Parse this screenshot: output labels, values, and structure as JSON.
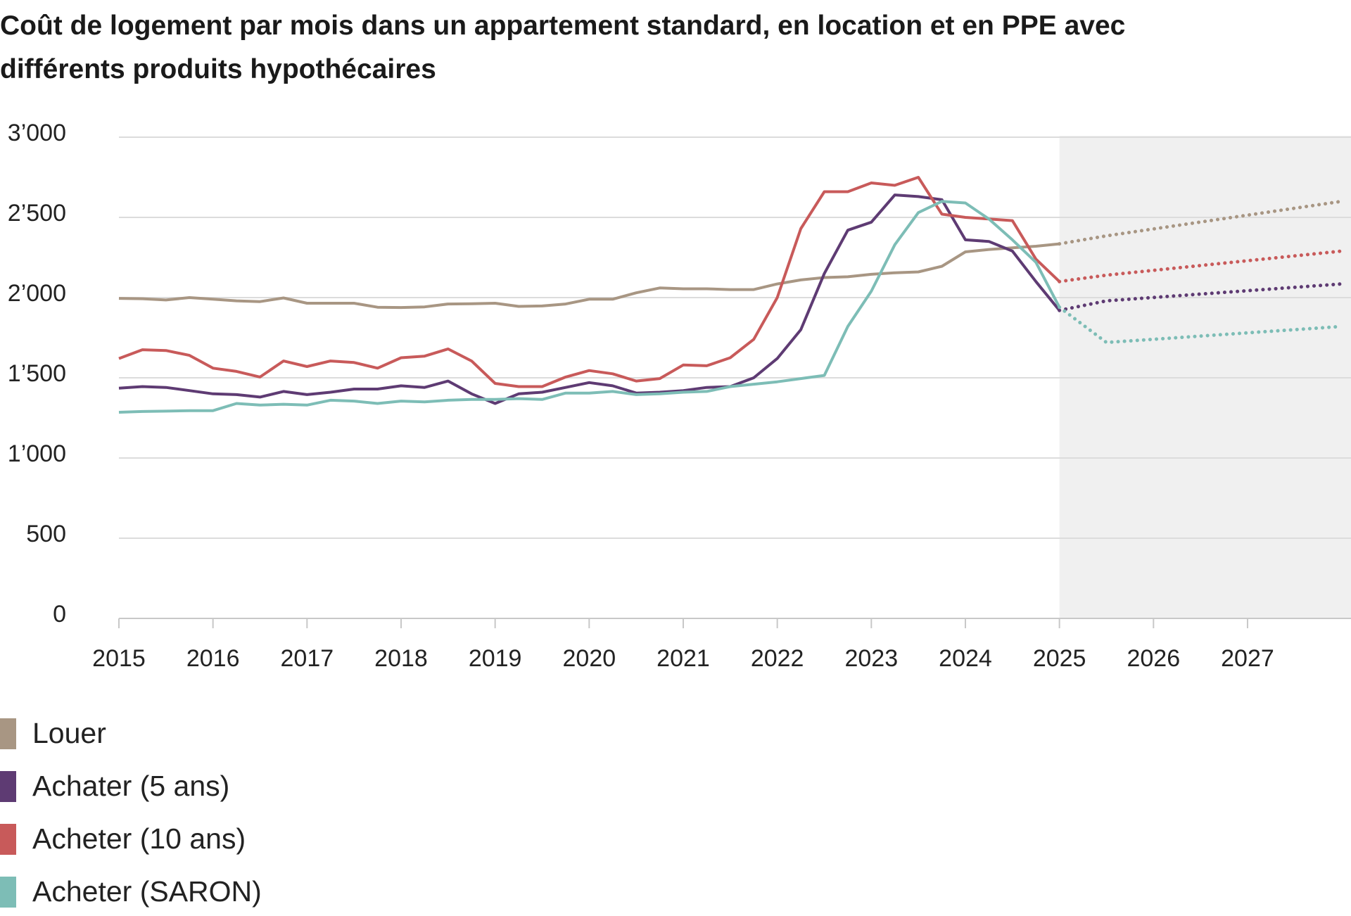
{
  "chart_data": {
    "type": "line",
    "title": "Coût de logement par mois dans un appartement standard, en location et en PPE avec différents produits hypothécaires",
    "x": [
      2015,
      2015.25,
      2015.5,
      2015.75,
      2016,
      2016.25,
      2016.5,
      2016.75,
      2017,
      2017.25,
      2017.5,
      2017.75,
      2018,
      2018.25,
      2018.5,
      2018.75,
      2019,
      2019.25,
      2019.5,
      2019.75,
      2020,
      2020.25,
      2020.5,
      2020.75,
      2021,
      2021.25,
      2021.5,
      2021.75,
      2022,
      2022.25,
      2022.5,
      2022.75,
      2023,
      2023.25,
      2023.5,
      2023.75,
      2024,
      2024.25,
      2024.5,
      2024.75,
      2025,
      2025.5,
      2028
    ],
    "series": [
      {
        "name": "Louer",
        "color": "#a89683",
        "values": [
          1995,
          1993,
          1985,
          2000,
          1990,
          1980,
          1975,
          1998,
          1965,
          1965,
          1965,
          1940,
          1938,
          1942,
          1960,
          1962,
          1965,
          1945,
          1948,
          1960,
          1990,
          1990,
          2030,
          2060,
          2055,
          2055,
          2050,
          2050,
          2085,
          2110,
          2125,
          2130,
          2145,
          2155,
          2160,
          2195,
          2285,
          2300,
          2310,
          2320,
          2335,
          2385,
          2600
        ]
      },
      {
        "name": "Achater (5 ans)",
        "color": "#5e3b73",
        "values": [
          1435,
          1445,
          1440,
          1420,
          1400,
          1395,
          1380,
          1415,
          1395,
          1410,
          1430,
          1430,
          1450,
          1440,
          1480,
          1400,
          1340,
          1400,
          1410,
          1440,
          1470,
          1450,
          1405,
          1410,
          1420,
          1440,
          1445,
          1500,
          1620,
          1800,
          2150,
          2420,
          2470,
          2640,
          2630,
          2610,
          2360,
          2350,
          2290,
          2100,
          1920,
          1980,
          2085
        ]
      },
      {
        "name": "Acheter (10 ans)",
        "color": "#c85a5a",
        "values": [
          1620,
          1675,
          1670,
          1640,
          1560,
          1540,
          1505,
          1605,
          1570,
          1605,
          1595,
          1560,
          1625,
          1635,
          1680,
          1605,
          1465,
          1445,
          1445,
          1505,
          1545,
          1525,
          1480,
          1495,
          1580,
          1575,
          1625,
          1740,
          2000,
          2430,
          2660,
          2660,
          2715,
          2700,
          2750,
          2520,
          2500,
          2490,
          2480,
          2240,
          2100,
          2140,
          2290
        ]
      },
      {
        "name": "Acheter (SARON)",
        "color": "#7dbdb6",
        "values": [
          1285,
          1290,
          1292,
          1295,
          1295,
          1340,
          1330,
          1335,
          1330,
          1360,
          1355,
          1340,
          1355,
          1350,
          1360,
          1365,
          1365,
          1370,
          1365,
          1405,
          1405,
          1415,
          1395,
          1400,
          1410,
          1415,
          1445,
          1460,
          1475,
          1495,
          1515,
          1820,
          2040,
          2330,
          2530,
          2600,
          2590,
          2490,
          2360,
          2220,
          1940,
          1720,
          1820
        ]
      }
    ],
    "xlim": [
      2015,
      2028.1
    ],
    "xticks": [
      2015,
      2016,
      2017,
      2018,
      2019,
      2020,
      2021,
      2022,
      2023,
      2024,
      2025,
      2026,
      2027
    ],
    "ylim": [
      0,
      3000
    ],
    "yticks": [
      0,
      500,
      {
        "value": 1000,
        "label": "1’000"
      },
      {
        "value": 1500,
        "label": "1’500"
      },
      {
        "value": 2000,
        "label": "2’000"
      },
      {
        "value": 2500,
        "label": "2’500"
      },
      {
        "value": 3000,
        "label": "3’000"
      }
    ],
    "grid": true,
    "forecast_start": 2025
  }
}
